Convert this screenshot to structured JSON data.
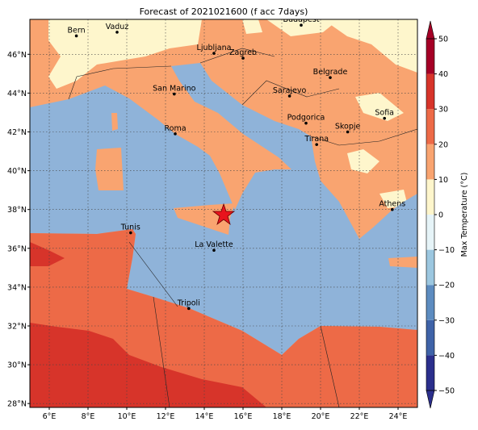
{
  "map": {
    "title": "Forecast of 2021021600 (f acc 7days)",
    "lonlim": [
      5,
      25
    ],
    "latlim": [
      27.8,
      47.8
    ],
    "lonticks": [
      {
        "value": 6,
        "label": "6°E"
      },
      {
        "value": 8,
        "label": "8°E"
      },
      {
        "value": 10,
        "label": "10°E"
      },
      {
        "value": 12,
        "label": "12°E"
      },
      {
        "value": 14,
        "label": "14°E"
      },
      {
        "value": 16,
        "label": "16°E"
      },
      {
        "value": 18,
        "label": "18°E"
      },
      {
        "value": 20,
        "label": "20°E"
      },
      {
        "value": 22,
        "label": "22°E"
      },
      {
        "value": 24,
        "label": "24°E"
      }
    ],
    "latticks": [
      {
        "value": 28,
        "label": "28°N"
      },
      {
        "value": 30,
        "label": "30°N"
      },
      {
        "value": 32,
        "label": "32°N"
      },
      {
        "value": 34,
        "label": "34°N"
      },
      {
        "value": 36,
        "label": "36°N"
      },
      {
        "value": 38,
        "label": "38°N"
      },
      {
        "value": 40,
        "label": "40°N"
      },
      {
        "value": 42,
        "label": "42°N"
      },
      {
        "value": 44,
        "label": "44°N"
      },
      {
        "value": 46,
        "label": "46°N"
      }
    ],
    "grid": true,
    "cities": [
      {
        "name": "Bern",
        "lon": 7.4,
        "lat": 46.95
      },
      {
        "name": "Vaduz",
        "lon": 9.5,
        "lat": 47.14
      },
      {
        "name": "Budapest",
        "lon": 19.0,
        "lat": 47.5
      },
      {
        "name": "Ljubljana",
        "lon": 14.5,
        "lat": 46.05
      },
      {
        "name": "Zagreb",
        "lon": 16.0,
        "lat": 45.8
      },
      {
        "name": "Belgrade",
        "lon": 20.5,
        "lat": 44.8
      },
      {
        "name": "San Marino",
        "lon": 12.45,
        "lat": 43.95
      },
      {
        "name": "Sarajevo",
        "lon": 18.4,
        "lat": 43.85
      },
      {
        "name": "Sofia",
        "lon": 23.3,
        "lat": 42.7
      },
      {
        "name": "Podgorica",
        "lon": 19.25,
        "lat": 42.45
      },
      {
        "name": "Skopje",
        "lon": 21.4,
        "lat": 42.0
      },
      {
        "name": "Roma",
        "lon": 12.5,
        "lat": 41.9
      },
      {
        "name": "Tirana",
        "lon": 19.8,
        "lat": 41.35
      },
      {
        "name": "Athens",
        "lon": 23.7,
        "lat": 38.0
      },
      {
        "name": "Tunis",
        "lon": 10.2,
        "lat": 36.8
      },
      {
        "name": "La Valette",
        "lon": 14.5,
        "lat": 35.9
      },
      {
        "name": "Tripoli",
        "lon": 13.2,
        "lat": 32.9
      }
    ],
    "colorbar": {
      "label": "Max Temperature (°C)",
      "lim": [
        -50,
        50
      ],
      "colors": [
        "#2b2f8c",
        "#3f63a8",
        "#5d8cc0",
        "#9cc7e0",
        "#e6f4f8",
        "#fef6cc",
        "#f9a470",
        "#ed6a47",
        "#d7342a",
        "#a50026"
      ],
      "ticks": [
        {
          "value": -50,
          "label": "−50"
        },
        {
          "value": -40,
          "label": "−40"
        },
        {
          "value": -30,
          "label": "−30"
        },
        {
          "value": -20,
          "label": "−20"
        },
        {
          "value": -10,
          "label": "−10"
        },
        0,
        10,
        20,
        30,
        40,
        50
      ]
    }
  }
}
